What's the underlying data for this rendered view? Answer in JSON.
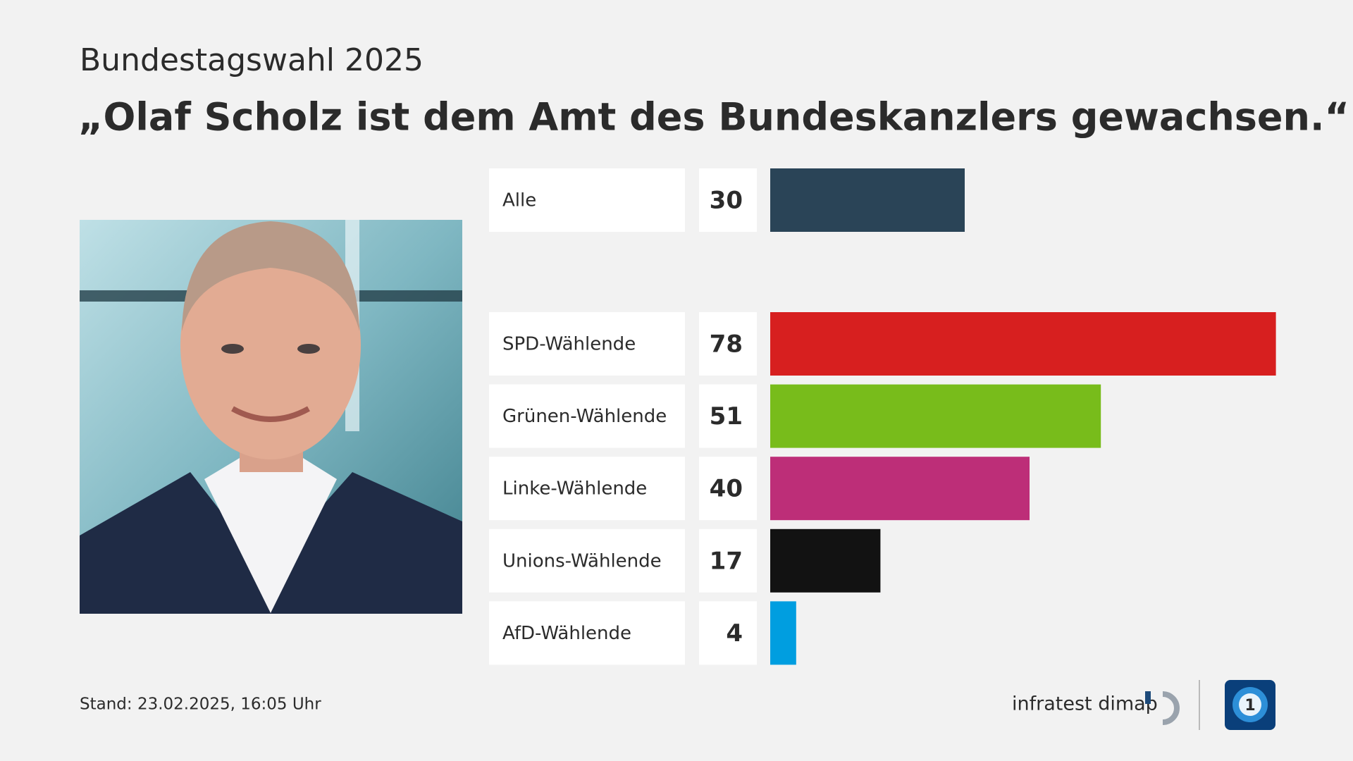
{
  "chart_data": {
    "type": "bar",
    "subtitle": "Bundestagswahl 2025",
    "title": "„Olaf Scholz ist dem Amt des Bundeskanzlers gewachsen.“",
    "categories": [
      "Alle",
      "SPD-Wählende",
      "Grünen-Wählende",
      "Linke-Wählende",
      "Unions-Wählende",
      "AfD-Wählende"
    ],
    "values": [
      30,
      78,
      51,
      40,
      17,
      4
    ],
    "colors": [
      "#2a4457",
      "#d71f1f",
      "#78bc1b",
      "#bd2e78",
      "#121212",
      "#009ee0"
    ],
    "footer": "Stand:  23.02.2025, 16:05 Uhr",
    "source": "infratest dimap"
  }
}
